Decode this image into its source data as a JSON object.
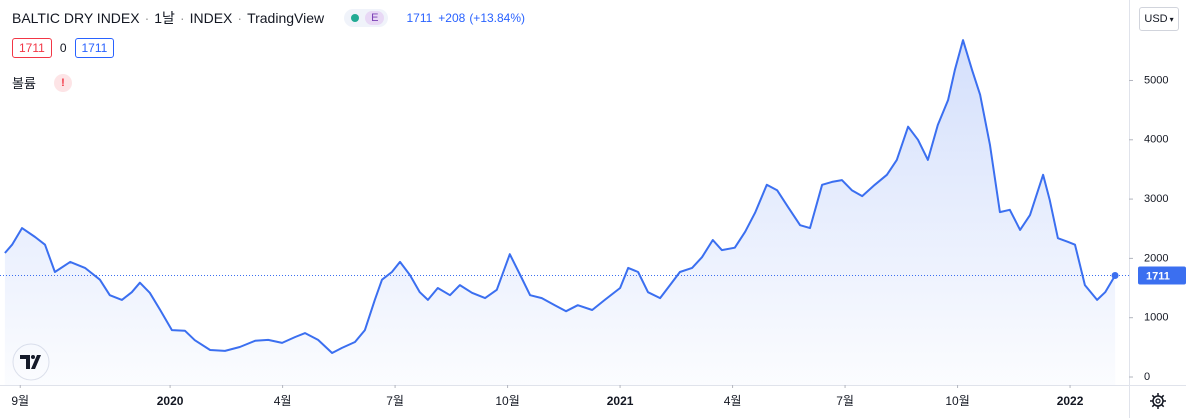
{
  "chart_data": {
    "type": "area",
    "symbol": "BALTIC DRY INDEX",
    "interval": "1날",
    "exchange": "INDEX",
    "source": "TradingView",
    "badge": "E",
    "last": 1711,
    "change": "+208",
    "change_pct": "(+13.84%)",
    "bid": 1711,
    "spread": 0,
    "ask": 1711,
    "volume_label": "볼륨",
    "warning": "!",
    "currency": "USD",
    "x": [
      2019.633,
      2019.649,
      2019.671,
      2019.7,
      2019.722,
      2019.744,
      2019.778,
      2019.811,
      2019.844,
      2019.866,
      2019.893,
      2019.915,
      2019.933,
      2019.955,
      2019.978,
      2020.004,
      2020.033,
      2020.055,
      2020.089,
      2020.122,
      2020.155,
      2020.189,
      2020.218,
      2020.249,
      2020.278,
      2020.3,
      2020.329,
      2020.36,
      2020.382,
      2020.411,
      2020.433,
      2020.455,
      2020.471,
      2020.493,
      2020.511,
      2020.533,
      2020.555,
      2020.573,
      2020.595,
      2020.622,
      2020.644,
      2020.671,
      2020.7,
      2020.726,
      2020.755,
      2020.778,
      2020.8,
      2020.826,
      2020.855,
      2020.88,
      2020.906,
      2020.938,
      2020.966,
      2021.0,
      2021.018,
      2021.04,
      2021.062,
      2021.089,
      2021.111,
      2021.133,
      2021.16,
      2021.182,
      2021.206,
      2021.226,
      2021.255,
      2021.278,
      2021.3,
      2021.326,
      2021.349,
      2021.373,
      2021.4,
      2021.422,
      2021.449,
      2021.471,
      2021.493,
      2021.515,
      2021.538,
      2021.566,
      2021.593,
      2021.615,
      2021.64,
      2021.662,
      2021.684,
      2021.706,
      2021.729,
      2021.744,
      2021.762,
      2021.782,
      2021.8,
      2021.822,
      2021.844,
      2021.866,
      2021.889,
      2021.911,
      2021.94,
      2021.955,
      2021.973,
      2021.995,
      2022.011,
      2022.033,
      2022.06,
      2022.078,
      2022.1
    ],
    "series": [
      {
        "color": "#3b6ff0",
        "values": [
          2090,
          2230,
          2510,
          2360,
          2230,
          1770,
          1940,
          1840,
          1640,
          1380,
          1300,
          1430,
          1590,
          1420,
          1130,
          790,
          780,
          620,
          455,
          440,
          505,
          610,
          625,
          575,
          675,
          740,
          625,
          405,
          490,
          590,
          790,
          1300,
          1640,
          1770,
          1940,
          1720,
          1430,
          1300,
          1500,
          1380,
          1550,
          1420,
          1330,
          1470,
          2070,
          1720,
          1380,
          1330,
          1210,
          1110,
          1210,
          1130,
          1300,
          1500,
          1840,
          1770,
          1430,
          1330,
          1550,
          1770,
          1840,
          2020,
          2310,
          2140,
          2180,
          2450,
          2770,
          3240,
          3150,
          2870,
          2560,
          2510,
          3240,
          3290,
          3320,
          3150,
          3050,
          3240,
          3410,
          3660,
          4220,
          4000,
          3660,
          4250,
          4670,
          5180,
          5680,
          5180,
          4760,
          3910,
          2780,
          2820,
          2480,
          2730,
          3410,
          2980,
          2340,
          2280,
          2230,
          1550,
          1300,
          1430,
          1711
        ]
      }
    ],
    "xlim": [
      2019.622,
      2022.131
    ],
    "xticks": [
      {
        "value": 2019.667,
        "label": "9월"
      },
      2020,
      {
        "value": 2020.25,
        "label": "4월"
      },
      {
        "value": 2020.5,
        "label": "7월"
      },
      {
        "value": 2020.75,
        "label": "10월"
      },
      2021,
      {
        "value": 2021.25,
        "label": "4월"
      },
      {
        "value": 2021.5,
        "label": "7월"
      },
      {
        "value": 2021.75,
        "label": "10월"
      },
      2022
    ],
    "ylim": [
      -135,
      6357
    ],
    "yticks": [
      0,
      1000,
      2000,
      3000,
      4000,
      5000
    ],
    "grid": false
  }
}
